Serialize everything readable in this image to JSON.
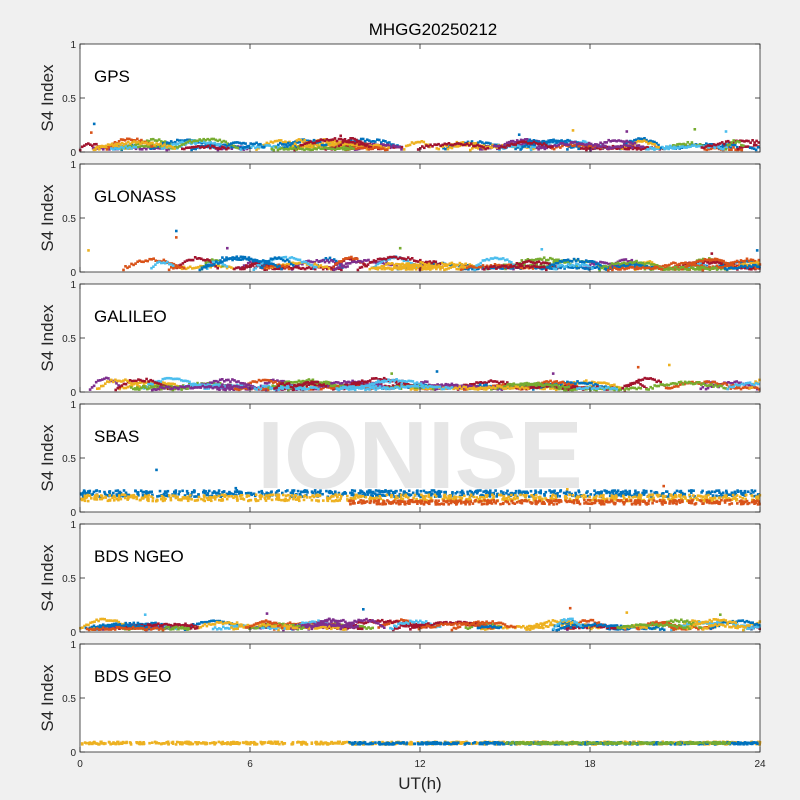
{
  "title": "MHGG20250212",
  "watermark": "IONISE",
  "xlabel": "UT(h)",
  "ylabel": "S4 Index",
  "xlim": [
    0,
    24
  ],
  "xticks": [
    0,
    6,
    12,
    18,
    24
  ],
  "xtick_labels": [
    "0",
    "6",
    "12",
    "18",
    "24"
  ],
  "ylim": [
    0,
    1
  ],
  "yticks": [
    0,
    0.5,
    1
  ],
  "ytick_labels": [
    "0",
    "0.5",
    "1"
  ],
  "colors": {
    "figure_bg": "#f0f0f0",
    "axes_bg": "#ffffff",
    "axis": "#262626",
    "watermark": "#d9d9d9",
    "series_palette": [
      "#0072bd",
      "#d95319",
      "#edb120",
      "#7e2f8e",
      "#77ac30",
      "#4dbeee",
      "#a2142f"
    ]
  },
  "chart_data": [
    {
      "type": "scatter",
      "label": "GPS",
      "series_colors": [
        "#0072bd",
        "#d95319",
        "#edb120",
        "#7e2f8e",
        "#77ac30",
        "#4dbeee",
        "#a2142f"
      ],
      "baseline_range": [
        0.03,
        0.12
      ],
      "spikes": [
        {
          "x": 0.5,
          "y": 0.26
        },
        {
          "x": 0.4,
          "y": 0.18
        },
        {
          "x": 17.4,
          "y": 0.2
        },
        {
          "x": 19.3,
          "y": 0.19
        },
        {
          "x": 21.7,
          "y": 0.21
        },
        {
          "x": 22.8,
          "y": 0.19
        },
        {
          "x": 9.2,
          "y": 0.15
        },
        {
          "x": 15.5,
          "y": 0.16
        }
      ]
    },
    {
      "type": "scatter",
      "label": "GLONASS",
      "series_colors": [
        "#0072bd",
        "#d95319",
        "#edb120",
        "#7e2f8e",
        "#77ac30",
        "#4dbeee",
        "#a2142f"
      ],
      "baseline_range": [
        0.03,
        0.14
      ],
      "spikes": [
        {
          "x": 3.4,
          "y": 0.38
        },
        {
          "x": 3.4,
          "y": 0.32
        },
        {
          "x": 0.3,
          "y": 0.2
        },
        {
          "x": 5.2,
          "y": 0.22
        },
        {
          "x": 11.3,
          "y": 0.22
        },
        {
          "x": 16.3,
          "y": 0.21
        },
        {
          "x": 22.3,
          "y": 0.17
        },
        {
          "x": 23.9,
          "y": 0.2
        }
      ]
    },
    {
      "type": "scatter",
      "label": "GALILEO",
      "series_colors": [
        "#0072bd",
        "#d95319",
        "#edb120",
        "#7e2f8e",
        "#77ac30",
        "#4dbeee",
        "#a2142f"
      ],
      "baseline_range": [
        0.03,
        0.12
      ],
      "spikes": [
        {
          "x": 12.6,
          "y": 0.19
        },
        {
          "x": 19.7,
          "y": 0.23
        },
        {
          "x": 20.8,
          "y": 0.25
        },
        {
          "x": 16.7,
          "y": 0.17
        },
        {
          "x": 11.0,
          "y": 0.17
        }
      ]
    },
    {
      "type": "scatter",
      "label": "SBAS",
      "series_colors": [
        "#0072bd",
        "#d95319",
        "#edb120"
      ],
      "series_levels": [
        {
          "color": "#0072bd",
          "x_range": [
            0,
            24
          ],
          "y_range": [
            0.14,
            0.2
          ]
        },
        {
          "color": "#edb120",
          "x_range": [
            0,
            24
          ],
          "y_range": [
            0.1,
            0.16
          ]
        },
        {
          "color": "#d95319",
          "x_range": [
            9.5,
            24
          ],
          "y_range": [
            0.07,
            0.11
          ]
        }
      ],
      "spikes": [
        {
          "x": 2.7,
          "y": 0.39
        },
        {
          "x": 20.6,
          "y": 0.24
        },
        {
          "x": 17.2,
          "y": 0.21
        },
        {
          "x": 5.5,
          "y": 0.22
        }
      ]
    },
    {
      "type": "scatter",
      "label": "BDS NGEO",
      "series_colors": [
        "#0072bd",
        "#d95319",
        "#edb120",
        "#7e2f8e",
        "#77ac30",
        "#4dbeee",
        "#a2142f"
      ],
      "baseline_range": [
        0.03,
        0.12
      ],
      "spikes": [
        {
          "x": 10.0,
          "y": 0.21
        },
        {
          "x": 17.3,
          "y": 0.22
        },
        {
          "x": 19.3,
          "y": 0.18
        },
        {
          "x": 6.6,
          "y": 0.17
        },
        {
          "x": 22.6,
          "y": 0.16
        },
        {
          "x": 2.3,
          "y": 0.16
        }
      ]
    },
    {
      "type": "scatter",
      "label": "BDS GEO",
      "series_colors": [
        "#edb120",
        "#0072bd",
        "#77ac30"
      ],
      "series_levels": [
        {
          "color": "#edb120",
          "x_range": [
            0,
            24
          ],
          "y_range": [
            0.07,
            0.095
          ]
        },
        {
          "color": "#0072bd",
          "x_range": [
            9.5,
            24
          ],
          "y_range": [
            0.07,
            0.09
          ]
        },
        {
          "color": "#77ac30",
          "x_range": [
            15,
            23
          ],
          "y_range": [
            0.075,
            0.09
          ]
        }
      ],
      "spikes": []
    }
  ]
}
